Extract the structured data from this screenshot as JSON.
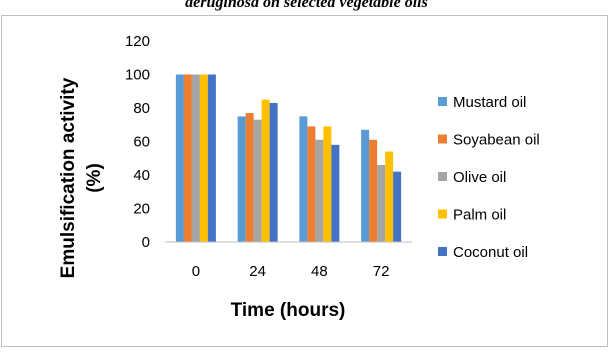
{
  "caption": "aeruginosa on selected vegetable oils",
  "chart_data": {
    "type": "bar",
    "categories": [
      "0",
      "24",
      "48",
      "72"
    ],
    "xlabel": "Time (hours)",
    "ylabel_lines": [
      "Emulsification activity",
      "(%)"
    ],
    "ylim": [
      0,
      120
    ],
    "yticks": [
      0,
      20,
      40,
      60,
      80,
      100,
      120
    ],
    "grid": false,
    "legend_position": "right",
    "series": [
      {
        "name": "Mustard oil",
        "color": "#5b9bd5",
        "values": [
          100,
          75,
          75,
          67
        ]
      },
      {
        "name": "Soyabean oil",
        "color": "#ed7d31",
        "values": [
          100,
          77,
          69,
          61
        ]
      },
      {
        "name": "Olive oil",
        "color": "#a5a5a5",
        "values": [
          100,
          73,
          61,
          46
        ]
      },
      {
        "name": "Palm oil",
        "color": "#ffc000",
        "values": [
          100,
          85,
          69,
          54
        ]
      },
      {
        "name": "Coconut oil",
        "color": "#4472c4",
        "values": [
          100,
          83,
          58,
          42
        ]
      }
    ]
  }
}
